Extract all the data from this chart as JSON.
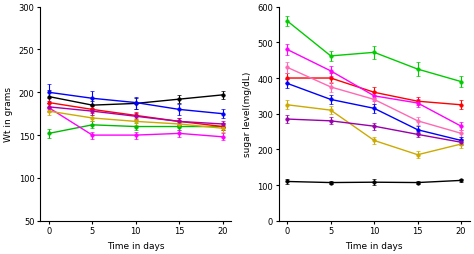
{
  "days": [
    0,
    5,
    10,
    15,
    20
  ],
  "weight_series": {
    "black": [
      195,
      185,
      187,
      192,
      197
    ],
    "blue": [
      200,
      193,
      188,
      180,
      175
    ],
    "green": [
      152,
      162,
      160,
      160,
      160
    ],
    "magenta": [
      182,
      150,
      150,
      152,
      148
    ],
    "red": [
      188,
      180,
      173,
      166,
      160
    ],
    "yellow": [
      178,
      170,
      166,
      163,
      158
    ],
    "purple": [
      183,
      178,
      172,
      166,
      163
    ]
  },
  "weight_errors": {
    "black": [
      8,
      5,
      6,
      5,
      5
    ],
    "blue": [
      10,
      8,
      7,
      6,
      5
    ],
    "green": [
      5,
      4,
      4,
      4,
      4
    ],
    "magenta": [
      5,
      4,
      4,
      4,
      4
    ],
    "red": [
      5,
      4,
      4,
      4,
      4
    ],
    "yellow": [
      5,
      4,
      4,
      4,
      4
    ],
    "purple": [
      5,
      4,
      4,
      4,
      4
    ]
  },
  "sugar_series": {
    "black": [
      110,
      107,
      108,
      107,
      113
    ],
    "green": [
      560,
      462,
      472,
      425,
      390
    ],
    "red": [
      400,
      400,
      360,
      335,
      325
    ],
    "magenta": [
      480,
      420,
      350,
      330,
      265
    ],
    "pink": [
      430,
      375,
      340,
      280,
      245
    ],
    "blue": [
      385,
      340,
      315,
      255,
      225
    ],
    "yellow": [
      325,
      310,
      225,
      185,
      215
    ],
    "purple": [
      285,
      280,
      265,
      242,
      220
    ]
  },
  "sugar_errors": {
    "black": [
      8,
      5,
      8,
      5,
      5
    ],
    "green": [
      15,
      15,
      18,
      20,
      15
    ],
    "red": [
      15,
      15,
      15,
      12,
      12
    ],
    "magenta": [
      15,
      15,
      15,
      12,
      12
    ],
    "pink": [
      15,
      15,
      12,
      12,
      10
    ],
    "blue": [
      12,
      12,
      12,
      10,
      10
    ],
    "yellow": [
      12,
      12,
      10,
      10,
      10
    ],
    "purple": [
      12,
      10,
      10,
      8,
      8
    ]
  },
  "weight_ylim": [
    50,
    300
  ],
  "weight_yticks": [
    50,
    100,
    150,
    200,
    250,
    300
  ],
  "sugar_ylim": [
    0,
    600
  ],
  "sugar_yticks": [
    0,
    100,
    200,
    300,
    400,
    500,
    600
  ],
  "xticks": [
    0,
    5,
    10,
    15,
    20
  ],
  "xlabel": "Time in days",
  "ylabel_left": "Wt in grams",
  "ylabel_right": "sugar level(mg/dL)",
  "color_map_weight": {
    "black": "#000000",
    "blue": "#0000FF",
    "green": "#00BB00",
    "magenta": "#FF00FF",
    "red": "#FF0000",
    "yellow": "#CCAA00",
    "purple": "#AA00AA"
  },
  "color_map_sugar": {
    "black": "#000000",
    "green": "#00CC00",
    "red": "#FF0000",
    "magenta": "#FF00FF",
    "pink": "#FF69B4",
    "blue": "#0000FF",
    "yellow": "#CCAA00",
    "purple": "#9900AA"
  }
}
